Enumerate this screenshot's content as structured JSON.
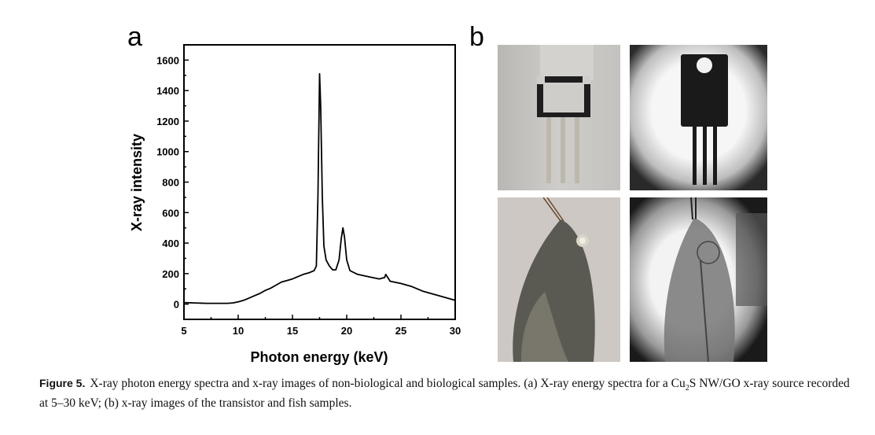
{
  "figure": {
    "panel_a_label": "a",
    "panel_b_label": "b",
    "caption": {
      "label": "Figure 5.",
      "text_before_sub": "X-ray photon energy spectra and x-ray images of non-biological and biological samples. (a) X-ray energy spectra for a Cu",
      "subscript": "2",
      "text_after_sub": "S NW/GO x-ray source recorded at 5–30 keV; (b) x-ray images of the transistor and fish samples."
    },
    "images": [
      {
        "id": "transistor-photo",
        "kind": "photograph"
      },
      {
        "id": "transistor-xray",
        "kind": "x-ray image"
      },
      {
        "id": "fish-photo",
        "kind": "photograph"
      },
      {
        "id": "fish-xray",
        "kind": "x-ray image"
      }
    ]
  },
  "chart_data": {
    "type": "line",
    "title": "",
    "xlabel": "Photon energy (keV)",
    "ylabel": "X-ray intensity",
    "xlim": [
      5,
      30
    ],
    "ylim": [
      -100,
      1700
    ],
    "xticks": [
      5,
      10,
      15,
      20,
      25,
      30
    ],
    "yticks": [
      0,
      200,
      400,
      600,
      800,
      1000,
      1200,
      1400,
      1600
    ],
    "grid": false,
    "line_color": "#000000",
    "series": [
      {
        "x": [
          5,
          6,
          7,
          8,
          9,
          9.5,
          10,
          10.5,
          11,
          11.5,
          12,
          12.5,
          13,
          13.5,
          14,
          14.5,
          15,
          15.5,
          16,
          16.5,
          17,
          17.2,
          17.35,
          17.5,
          17.6,
          17.75,
          17.9,
          18.1,
          18.4,
          18.7,
          19,
          19.3,
          19.5,
          19.65,
          19.8,
          20,
          20.3,
          21,
          22,
          23,
          23.5,
          23.6,
          24,
          25,
          26,
          27,
          28,
          29,
          30
        ],
        "y": [
          10,
          8,
          5,
          5,
          5,
          8,
          15,
          25,
          40,
          55,
          70,
          90,
          105,
          125,
          145,
          155,
          165,
          180,
          195,
          205,
          220,
          250,
          700,
          1510,
          1300,
          700,
          380,
          290,
          250,
          225,
          225,
          290,
          430,
          500,
          440,
          290,
          220,
          195,
          180,
          165,
          175,
          195,
          150,
          135,
          115,
          85,
          65,
          45,
          25
        ]
      }
    ]
  }
}
